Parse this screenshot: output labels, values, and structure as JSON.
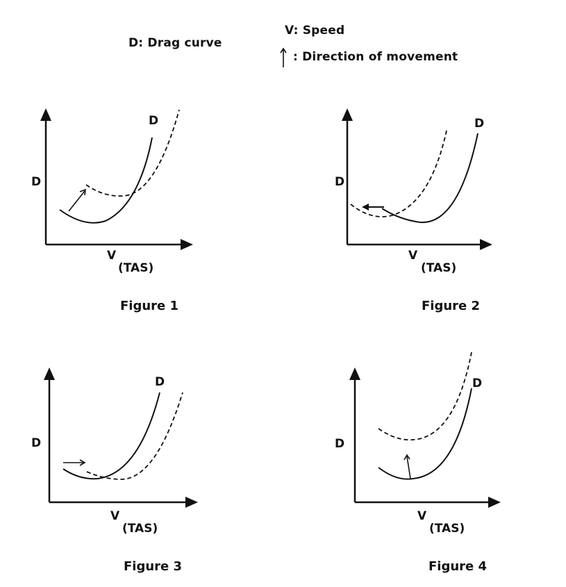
{
  "legend": {
    "drag_curve": "D: Drag curve",
    "speed": "V: Speed",
    "direction": ": Direction of movement"
  },
  "figures": [
    {
      "caption": "Figure 1",
      "y_label": "D",
      "x_label_v": "V",
      "x_label_tas": "(TAS)",
      "curve_label": "D"
    },
    {
      "caption": "Figure 2",
      "y_label": "D",
      "x_label_v": "V",
      "x_label_tas": "(TAS)",
      "curve_label": "D"
    },
    {
      "caption": "Figure 3",
      "y_label": "D",
      "x_label_v": "V",
      "x_label_tas": "(TAS)",
      "curve_label": "D"
    },
    {
      "caption": "Figure 4",
      "y_label": "D",
      "x_label_v": "V",
      "x_label_tas": "(TAS)",
      "curve_label": "D"
    }
  ],
  "icons": [
    "up-arrow-icon",
    "direction-arrow-icon"
  ]
}
